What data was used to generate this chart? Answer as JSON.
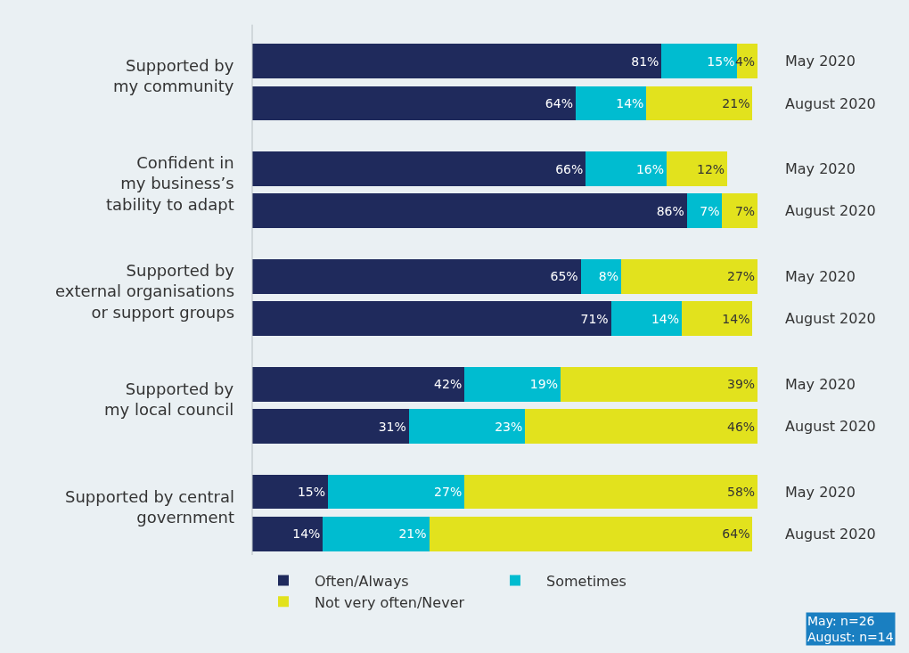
{
  "chart_data": {
    "type": "bar",
    "orientation": "horizontal",
    "stacked": true,
    "grid": false,
    "legend": "bottom",
    "tick_labels": "y",
    "categories": [
      "May 2020",
      "August 2020",
      "May 2020",
      "August 2020",
      "May 2020",
      "August 2020",
      "May 2020",
      "August 2020",
      "May 2020",
      "August 2020"
    ],
    "series": [
      {
        "name": "Often/Always",
        "color": "#1f2a5c",
        "values": [
          81,
          64,
          66,
          86,
          65,
          71,
          42,
          31,
          15,
          14
        ],
        "value_labels": [
          "81%",
          "64%",
          "66%",
          "86%",
          "65%",
          "71%",
          "42%",
          "31%",
          "15%",
          "14%"
        ]
      },
      {
        "name": "Sometimes",
        "color": "#00bcd0",
        "values": [
          15,
          14,
          16,
          7,
          8,
          14,
          19,
          23,
          27,
          21
        ],
        "value_labels": [
          "15%",
          "14%",
          "16%",
          "7%",
          "8%",
          "14%",
          "19%",
          "23%",
          "27%",
          "21%"
        ]
      },
      {
        "name": "Not very often/Never",
        "color": "#e2e21d",
        "values": [
          4,
          21,
          12,
          7,
          27,
          14,
          39,
          46,
          58,
          64
        ],
        "value_labels": [
          "4%",
          "21%",
          "12%",
          "7%",
          "27%",
          "14%",
          "39%",
          "46%",
          "58%",
          "64%"
        ]
      }
    ],
    "annotations": [
      "Supported by\nmy community",
      "Confident in\nmy business’s\ntability to adapt",
      "Supported by\nexternal organisations\nor support groups",
      "Supported by\nmy local council",
      "Supported by central\ngovernment",
      "May: n=26\nAugust: n=14"
    ]
  }
}
